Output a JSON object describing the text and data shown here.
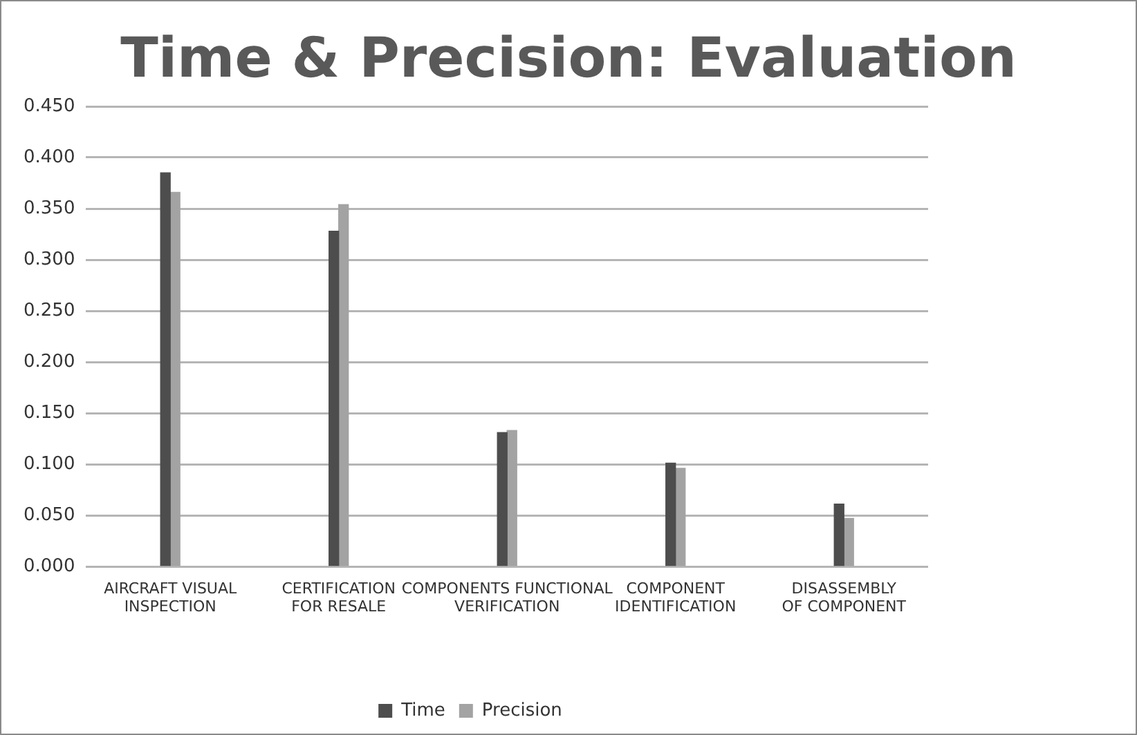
{
  "chart_data": {
    "type": "bar",
    "title": "Time & Precision: Evaluation",
    "categories": [
      "AIRCRAFT VISUAL INSPECTION",
      "CERTIFICATION FOR RESALE",
      "COMPONENTS FUNCTIONAL VERIFICATION",
      "COMPONENT IDENTIFICATION",
      "DISASSEMBLY OF COMPONENT"
    ],
    "series": [
      {
        "name": "Time",
        "color": "#4d4d4d",
        "values": [
          0.385,
          0.328,
          0.131,
          0.101,
          0.061
        ]
      },
      {
        "name": "Precision",
        "color": "#a3a3a3",
        "values": [
          0.366,
          0.354,
          0.133,
          0.096,
          0.047
        ]
      }
    ],
    "ylim": [
      0,
      0.45
    ],
    "yticks": [
      {
        "value": 0,
        "label": "0.000"
      },
      {
        "value": 0.05,
        "label": "0.050"
      },
      {
        "value": 0.1,
        "label": "0.100"
      },
      {
        "value": 0.15,
        "label": "0.150"
      },
      {
        "value": 0.2,
        "label": "0.200"
      },
      {
        "value": 0.25,
        "label": "0.250"
      },
      {
        "value": 0.3,
        "label": "0.300"
      },
      {
        "value": 0.35,
        "label": "0.350"
      },
      {
        "value": 0.4,
        "label": "0.400"
      },
      {
        "value": 0.45,
        "label": "0.450"
      }
    ],
    "grid": "y",
    "legend": "bottom"
  }
}
